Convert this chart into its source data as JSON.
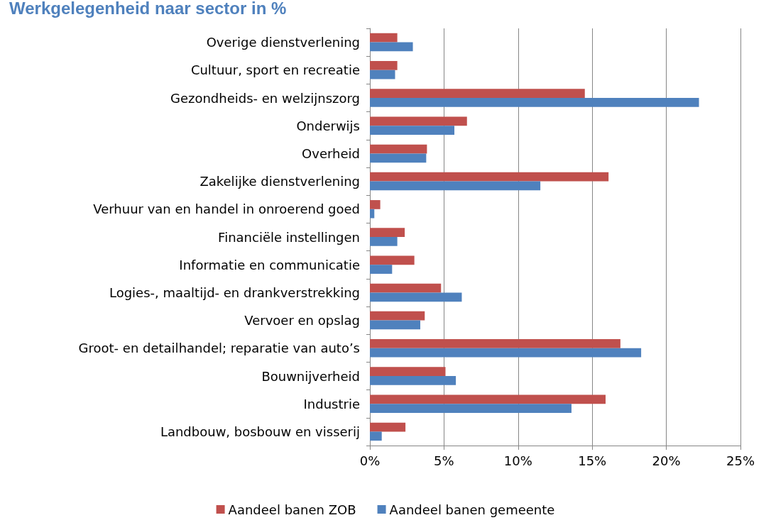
{
  "chart_data": {
    "type": "bar",
    "orientation": "horizontal",
    "title": "Werkgelegenheid naar sector in %",
    "categories": [
      "Overige dienstverlening",
      "Cultuur, sport en recreatie",
      "Gezondheids- en welzijnszorg",
      "Onderwijs",
      "Overheid",
      "Zakelijke dienstverlening",
      "Verhuur van en handel in onroerend goed",
      "Financiële instellingen",
      "Informatie en communicatie",
      "Logies-, maaltijd- en drankverstrekking",
      "Vervoer en opslag",
      "Groot- en detailhandel; reparatie van auto’s",
      "Bouwnijverheid",
      "Industrie",
      "Landbouw, bosbouw en visserij"
    ],
    "series": [
      {
        "name": "Aandeel banen ZOB",
        "color": "#c0504d",
        "values": [
          1.85,
          1.85,
          14.5,
          6.55,
          3.85,
          16.1,
          0.7,
          2.35,
          3.0,
          4.8,
          3.7,
          16.9,
          5.1,
          15.9,
          2.4
        ]
      },
      {
        "name": "Aandeel banen gemeente",
        "color": "#4f81bd",
        "values": [
          2.9,
          1.7,
          22.2,
          5.7,
          3.8,
          11.5,
          0.3,
          1.85,
          1.5,
          6.2,
          3.4,
          18.3,
          5.8,
          13.6,
          0.8
        ]
      }
    ],
    "xlim": [
      0,
      25
    ],
    "xticks": [
      {
        "value": 0,
        "label": "0%"
      },
      {
        "value": 5,
        "label": "5%"
      },
      {
        "value": 10,
        "label": "10%"
      },
      {
        "value": 15,
        "label": "15%"
      },
      {
        "value": 20,
        "label": "20%"
      },
      {
        "value": 25,
        "label": "25%"
      }
    ],
    "grid": "x",
    "legend": "bottom"
  }
}
